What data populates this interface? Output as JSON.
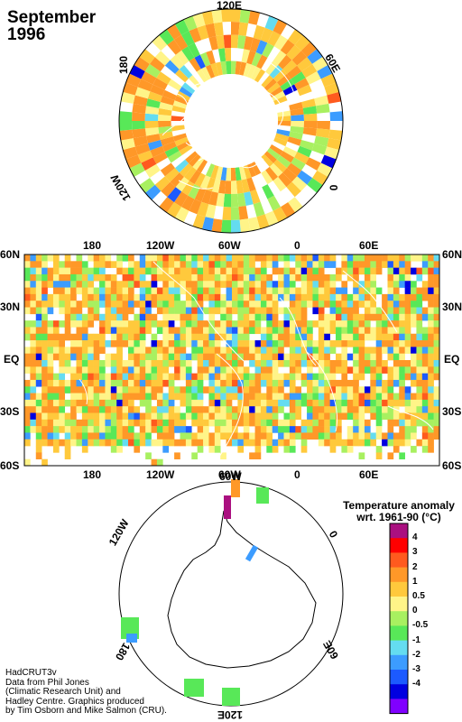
{
  "title": {
    "line1": "September",
    "line2": "1996"
  },
  "north_polar": {
    "labels": {
      "top": "120E",
      "left": "180",
      "right": "60E",
      "bottom_left": "120W",
      "bottom_right": "0"
    }
  },
  "mercator": {
    "top_lon_labels": [
      "180",
      "120W",
      "60W",
      "0",
      "60E"
    ],
    "bottom_lon_labels": [
      "180",
      "120W",
      "60W",
      "0",
      "60E"
    ],
    "left_lat_labels": [
      "60N",
      "30N",
      "EQ",
      "30S",
      "60S"
    ],
    "right_lat_labels": [
      "60N",
      "30N",
      "EQ",
      "30S",
      "60S"
    ]
  },
  "south_polar": {
    "labels": {
      "top": "60W",
      "top_left": "120W",
      "top_right": "0",
      "bottom_left": "180",
      "bottom": "120E",
      "bottom_right": "60E"
    }
  },
  "legend": {
    "title_line1": "Temperature anomaly",
    "title_line2": "wrt. 1961-90 (°C)",
    "ticks": [
      "4",
      "3",
      "2",
      "1",
      "0.5",
      "0",
      "-0.5",
      "-1",
      "-2",
      "-3",
      "-4"
    ],
    "colors": [
      "#aa1080",
      "#ff0000",
      "#ff5a1e",
      "#ff9828",
      "#ffc93c",
      "#fff488",
      "#a8f060",
      "#58e858",
      "#64dcf0",
      "#3c9cff",
      "#1c5aff",
      "#0000e0",
      "#8000ff"
    ]
  },
  "credit": {
    "lines": [
      "HadCRUT3v",
      "Data from Phil Jones",
      "(Climatic Research Unit) and",
      "Hadley Centre.  Graphics produced",
      "by Tim Osborn and Mike Salmon (CRU)."
    ]
  }
}
